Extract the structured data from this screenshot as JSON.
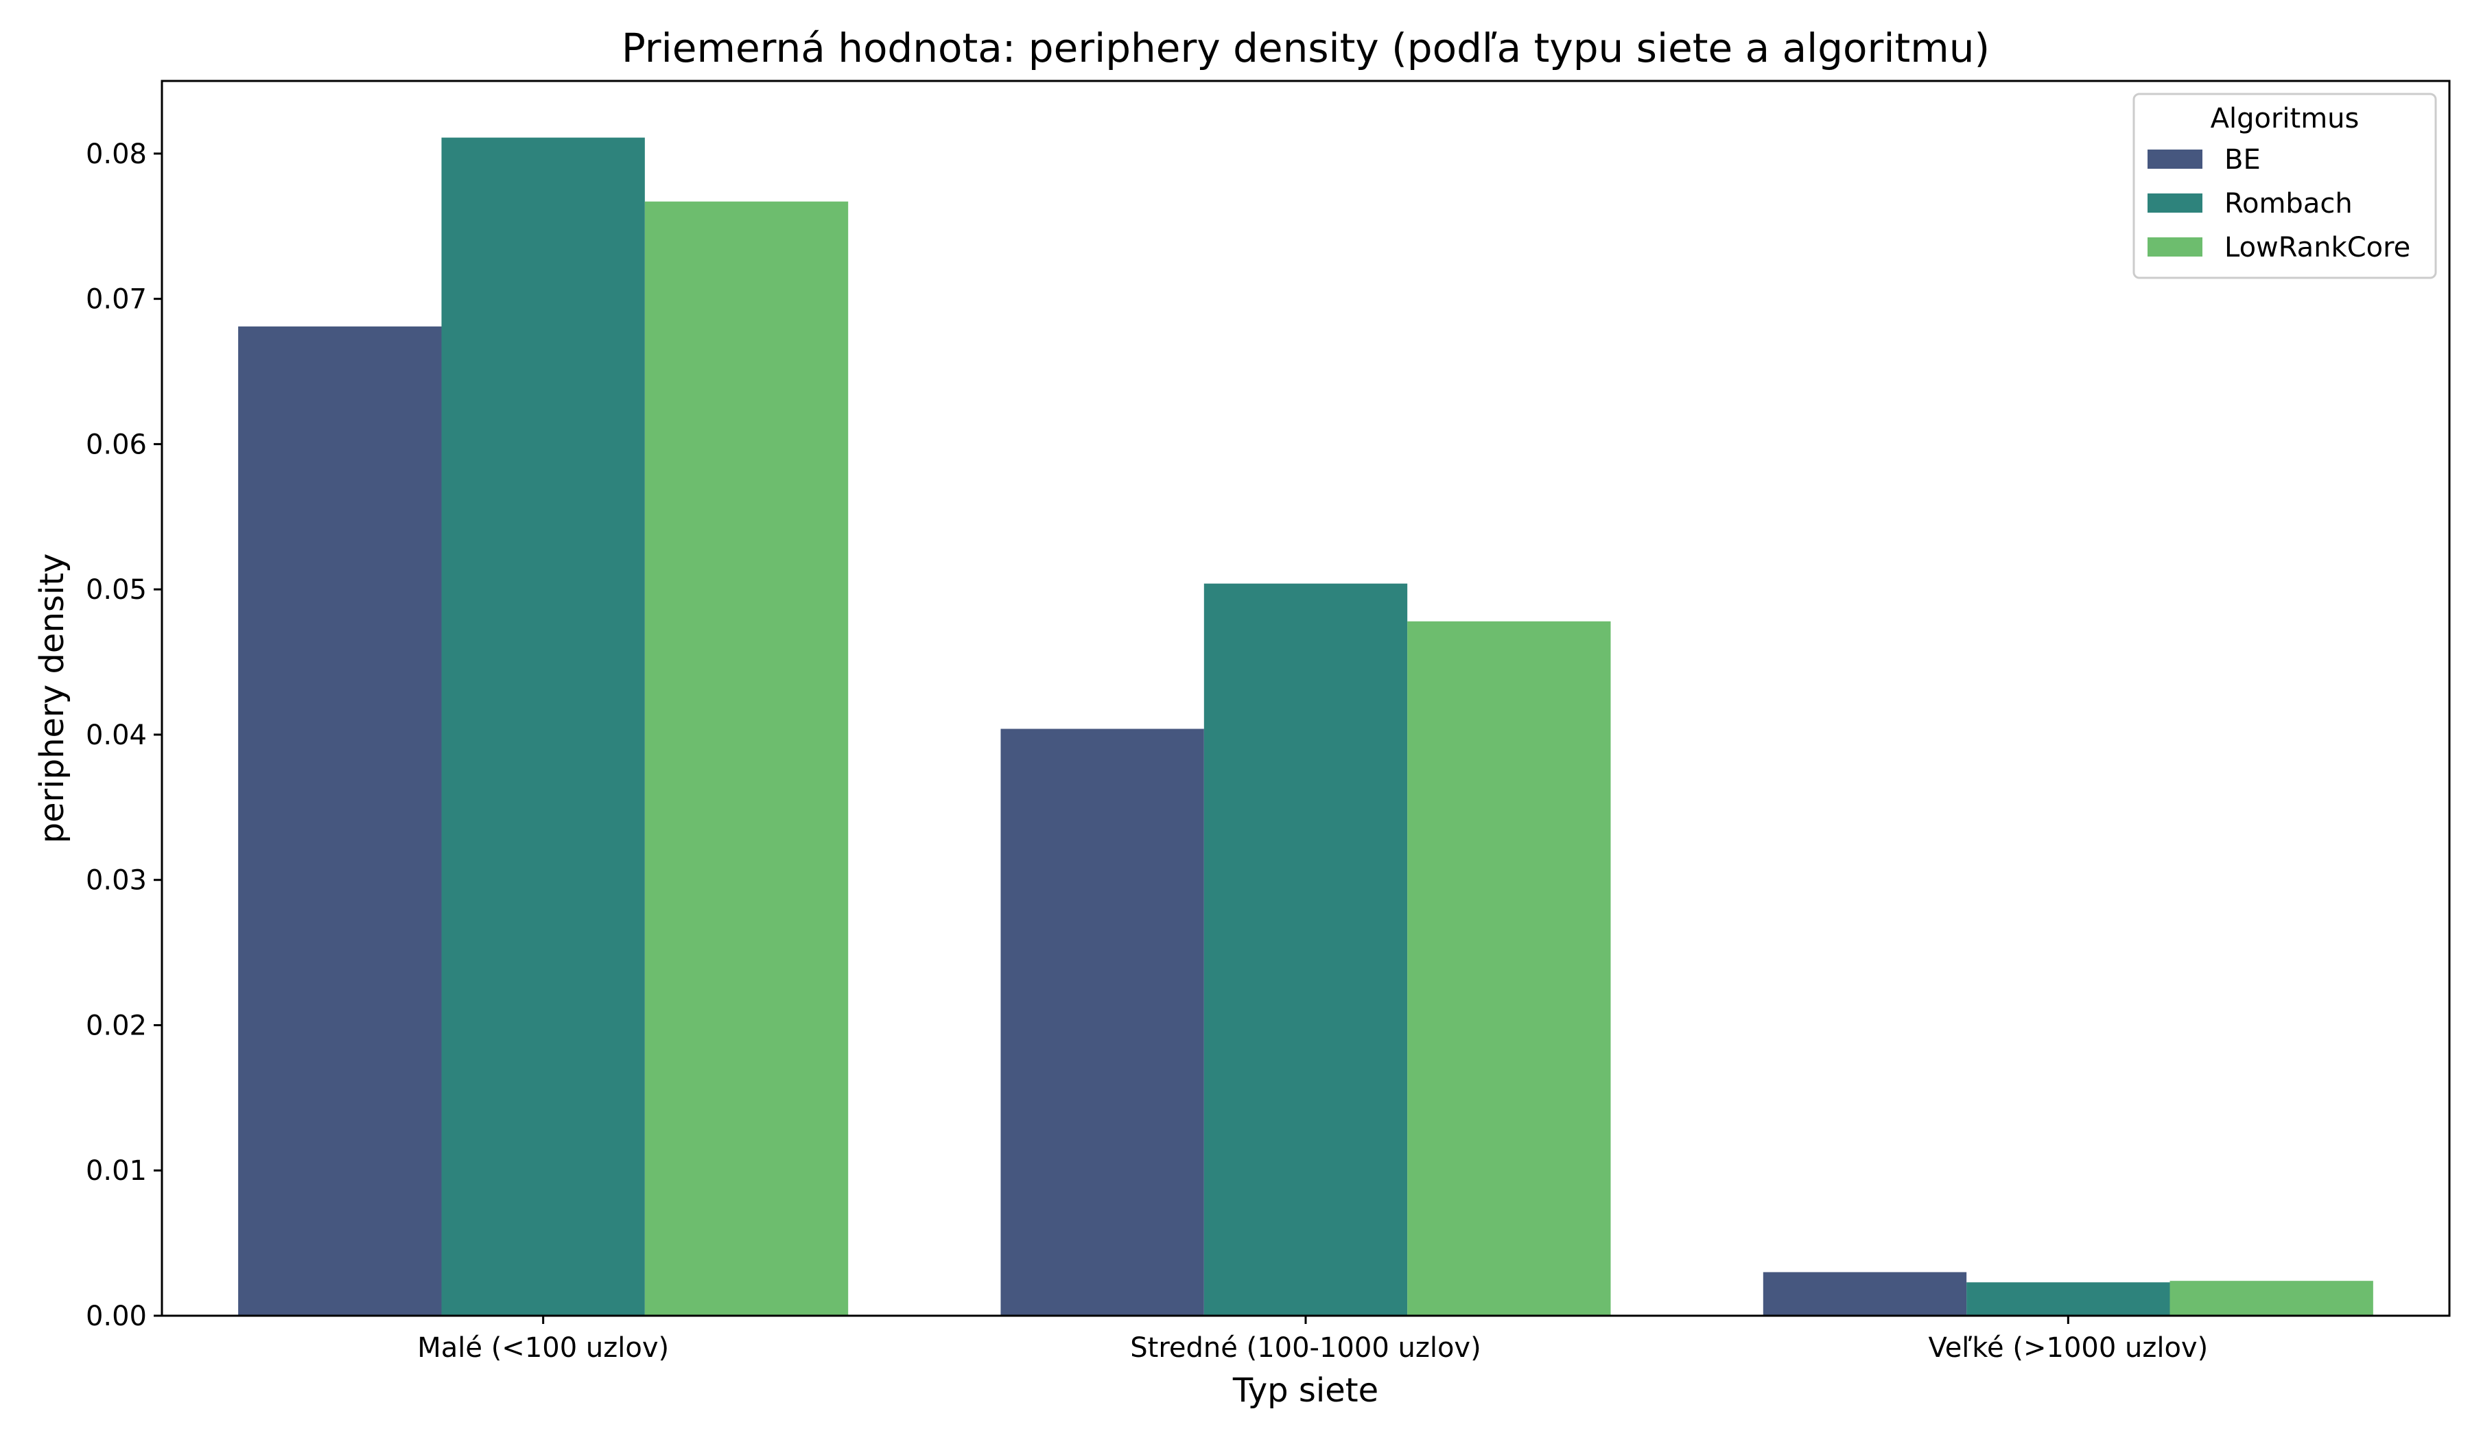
{
  "chart_data": {
    "type": "bar",
    "title": "Priemerná hodnota: periphery density (podľa typu siete a algoritmu)",
    "xlabel": "Typ siete",
    "ylabel": "periphery density",
    "categories": [
      "Malé (<100 uzlov)",
      "Stredné (100-1000 uzlov)",
      "Veľké (>1000 uzlov)"
    ],
    "series": [
      {
        "name": "BE",
        "color": "#46577f",
        "values": [
          0.0681,
          0.0404,
          0.003
        ]
      },
      {
        "name": "Rombach",
        "color": "#2e837c",
        "values": [
          0.0811,
          0.0504,
          0.0023
        ]
      },
      {
        "name": "LowRankCore",
        "color": "#6dbd6e",
        "values": [
          0.0767,
          0.0478,
          0.0024
        ]
      }
    ],
    "ylim": [
      0,
      0.085
    ],
    "yticks": [
      "0.00",
      "0.01",
      "0.02",
      "0.03",
      "0.04",
      "0.05",
      "0.06",
      "0.07",
      "0.08"
    ],
    "grid": false,
    "legend": {
      "title": "Algoritmus",
      "placement": "top-right"
    }
  }
}
